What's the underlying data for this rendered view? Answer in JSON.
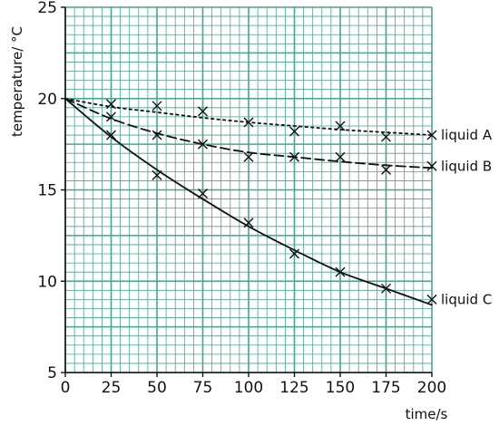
{
  "chart_data": {
    "type": "scatter",
    "xlabel": "time/s",
    "ylabel": "temperature/ °C",
    "xlim": [
      0,
      200
    ],
    "ylim": [
      5,
      25
    ],
    "x_ticks": [
      0,
      25,
      50,
      75,
      100,
      125,
      150,
      175,
      200
    ],
    "y_ticks": [
      5,
      10,
      15,
      20,
      25
    ],
    "grid": true,
    "grid_color": "#4aa38f",
    "line_color": "#111111",
    "series": [
      {
        "name": "liquid A",
        "line_style": "dotted",
        "points": [
          [
            25,
            19.7
          ],
          [
            50,
            19.6
          ],
          [
            75,
            19.3
          ],
          [
            100,
            18.7
          ],
          [
            125,
            18.2
          ],
          [
            150,
            18.5
          ],
          [
            175,
            17.9
          ],
          [
            200,
            18.0
          ]
        ],
        "fit": [
          [
            0,
            20.0
          ],
          [
            25,
            19.55
          ],
          [
            50,
            19.25
          ],
          [
            75,
            18.95
          ],
          [
            100,
            18.7
          ],
          [
            125,
            18.5
          ],
          [
            150,
            18.3
          ],
          [
            175,
            18.15
          ],
          [
            200,
            18.0
          ]
        ]
      },
      {
        "name": "liquid B",
        "line_style": "dashed",
        "points": [
          [
            25,
            19.0
          ],
          [
            50,
            18.0
          ],
          [
            75,
            17.5
          ],
          [
            100,
            16.8
          ],
          [
            125,
            16.8
          ],
          [
            150,
            16.8
          ],
          [
            175,
            16.1
          ],
          [
            200,
            16.3
          ]
        ],
        "fit": [
          [
            0,
            20.0
          ],
          [
            25,
            18.9
          ],
          [
            50,
            18.1
          ],
          [
            75,
            17.5
          ],
          [
            100,
            17.05
          ],
          [
            125,
            16.8
          ],
          [
            150,
            16.55
          ],
          [
            175,
            16.35
          ],
          [
            200,
            16.2
          ]
        ]
      },
      {
        "name": "liquid C",
        "line_style": "solid",
        "points": [
          [
            25,
            18.0
          ],
          [
            50,
            15.8
          ],
          [
            75,
            14.8
          ],
          [
            100,
            13.2
          ],
          [
            125,
            11.5
          ],
          [
            150,
            10.5
          ],
          [
            175,
            9.6
          ],
          [
            200,
            9.0
          ]
        ],
        "fit": [
          [
            0,
            20.0
          ],
          [
            25,
            17.9
          ],
          [
            50,
            16.1
          ],
          [
            75,
            14.5
          ],
          [
            100,
            13.0
          ],
          [
            125,
            11.7
          ],
          [
            150,
            10.5
          ],
          [
            175,
            9.6
          ],
          [
            200,
            8.7
          ]
        ]
      }
    ]
  }
}
